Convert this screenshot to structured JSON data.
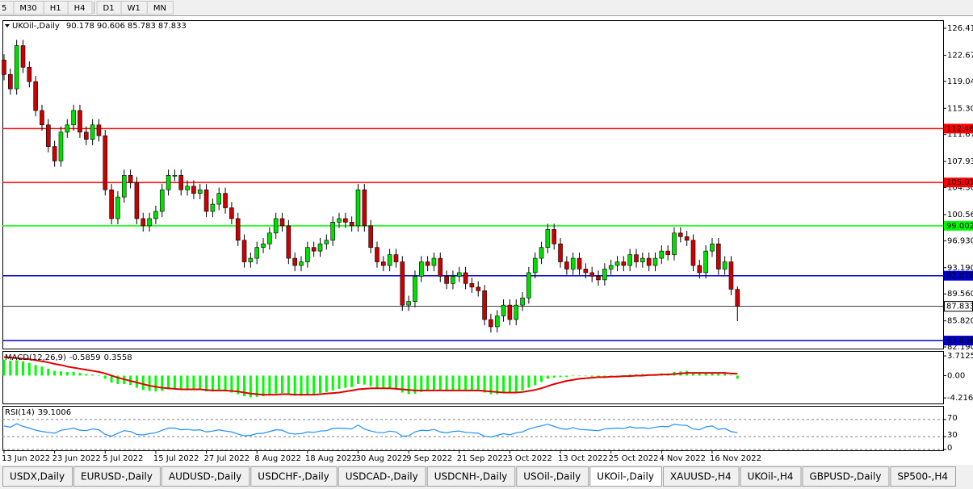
{
  "toolbar": {
    "timeframes": [
      "5",
      "M30",
      "H1",
      "H4",
      "D1",
      "W1",
      "MN"
    ]
  },
  "chart_data": [
    {
      "type": "candlestick",
      "title": "UKOil-,Daily",
      "categories": [
        "13 Jun 2022",
        null,
        null,
        null,
        null,
        null,
        null,
        null,
        "23 Jun 2022",
        null,
        null,
        null,
        null,
        null,
        null,
        null,
        "5 Jul 2022",
        null,
        null,
        null,
        null,
        null,
        null,
        null,
        "15 Jul 2022",
        null,
        null,
        null,
        null,
        null,
        null,
        null,
        "27 Jul 2022",
        null,
        null,
        null,
        null,
        null,
        null,
        null,
        "8 Aug 2022",
        null,
        null,
        null,
        null,
        null,
        null,
        null,
        "18 Aug 2022",
        null,
        null,
        null,
        null,
        null,
        null,
        null,
        "30 Aug 2022",
        null,
        null,
        null,
        null,
        null,
        null,
        null,
        "9 Sep 2022",
        null,
        null,
        null,
        null,
        null,
        null,
        null,
        "21 Sep 2022",
        null,
        null,
        null,
        null,
        null,
        null,
        null,
        "3 Oct 2022",
        null,
        null,
        null,
        null,
        null,
        null,
        null,
        "13 Oct 2022",
        null,
        null,
        null,
        null,
        null,
        null,
        null,
        "25 Oct 2022",
        null,
        null,
        null,
        null,
        null,
        null,
        null,
        "4 Nov 2022",
        null,
        null,
        null,
        null,
        null,
        null,
        null,
        "16 Nov 2022",
        null,
        null,
        null,
        null
      ],
      "open": [
        122,
        120,
        118,
        124,
        121,
        119,
        115,
        113,
        110,
        108,
        112,
        113,
        115,
        112,
        111,
        113,
        111.5,
        104,
        100,
        103,
        106,
        105,
        100,
        99,
        100,
        101,
        104,
        106,
        106,
        104,
        104.5,
        103.5,
        104,
        101,
        102,
        103.5,
        101.5,
        100,
        97,
        94,
        94.5,
        96,
        96.5,
        98,
        100,
        99,
        94.5,
        93.5,
        94,
        96,
        95.5,
        96.5,
        97,
        99.5,
        100,
        99.5,
        99,
        104,
        99,
        96,
        94,
        93.5,
        95,
        94,
        88,
        88.5,
        92,
        94,
        93.5,
        94.5,
        92,
        91,
        92,
        92.5,
        91,
        90.5,
        90,
        86,
        85,
        86.5,
        88,
        86,
        88,
        89,
        92.5,
        94.5,
        96,
        98.5,
        96.5,
        94,
        93,
        94.5,
        93,
        92.5,
        92,
        91.5,
        93,
        93.5,
        94,
        93.5,
        95,
        94,
        94.5,
        93.5,
        94.5,
        95.5,
        95,
        98,
        97.5,
        97,
        93.5,
        92.5,
        95.5,
        96.5,
        93,
        94,
        90.178
      ],
      "high": [
        122.8,
        120.8,
        124.8,
        124.8,
        121.8,
        119.8,
        115.8,
        113.8,
        110.8,
        112.8,
        113.8,
        115.8,
        115.8,
        112.8,
        113.8,
        113.8,
        112.3,
        104.8,
        103.8,
        106.8,
        106.8,
        105.8,
        100.8,
        100.8,
        101.8,
        104.8,
        106.8,
        106.8,
        106.8,
        105.3,
        105.3,
        104.8,
        104.8,
        102.8,
        104.3,
        104.3,
        102.3,
        100.8,
        97.8,
        95.3,
        96.8,
        97.3,
        98.8,
        100.8,
        100.8,
        99.8,
        95.3,
        94.8,
        96.8,
        96.8,
        97.3,
        97.8,
        100.3,
        100.8,
        100.8,
        100.3,
        104.8,
        104.8,
        99.8,
        96.8,
        94.8,
        95.8,
        95.8,
        94.8,
        89.3,
        92.8,
        94.8,
        94.8,
        95.3,
        95.3,
        92.8,
        92.8,
        93.3,
        93.3,
        91.8,
        91.3,
        90.8,
        86.8,
        87.3,
        88.8,
        88.8,
        88.8,
        89.8,
        93.3,
        95.3,
        96.8,
        99.3,
        99.3,
        97.3,
        94.8,
        95.3,
        95.3,
        93.8,
        93.3,
        92.8,
        93.8,
        94.3,
        94.8,
        94.8,
        95.8,
        95.8,
        95.3,
        95.3,
        95.3,
        96.3,
        96.3,
        98.8,
        98.8,
        98.3,
        97.8,
        94.3,
        96.3,
        97.3,
        97.3,
        94.8,
        94.8,
        90.606
      ],
      "low": [
        119.2,
        117.2,
        117.2,
        120.2,
        118.2,
        114.2,
        112.2,
        109.2,
        107.2,
        107.2,
        111.2,
        112.2,
        111.2,
        110.2,
        110.2,
        110.7,
        103.2,
        99.2,
        99.2,
        102.2,
        104.2,
        99.2,
        98.2,
        98.2,
        99.2,
        100.2,
        103.2,
        105.2,
        103.2,
        103.2,
        102.7,
        102.7,
        100.2,
        100.2,
        101.2,
        100.7,
        99.2,
        96.2,
        93.2,
        93.2,
        93.7,
        95.2,
        95.7,
        97.2,
        98.2,
        93.7,
        92.7,
        92.7,
        93.2,
        94.7,
        94.7,
        95.7,
        96.2,
        98.7,
        98.7,
        98.2,
        98.2,
        98.2,
        95.2,
        93.2,
        92.7,
        92.7,
        93.2,
        87.2,
        87.2,
        87.7,
        91.2,
        92.7,
        92.7,
        91.2,
        90.2,
        90.2,
        91.2,
        90.2,
        89.7,
        89.2,
        85.2,
        84.2,
        84.2,
        85.7,
        85.2,
        85.2,
        87.2,
        88.2,
        91.7,
        93.7,
        95.2,
        95.7,
        93.2,
        92.2,
        92.2,
        92.2,
        91.7,
        91.2,
        90.7,
        90.7,
        92.2,
        92.7,
        92.7,
        92.7,
        93.2,
        93.2,
        92.7,
        92.7,
        93.7,
        94.2,
        94.2,
        96.7,
        96.2,
        92.7,
        91.7,
        91.7,
        94.7,
        92.2,
        92.2,
        89.4,
        85.783
      ],
      "close": [
        120,
        118,
        124,
        121,
        119,
        115,
        113,
        110,
        108,
        112,
        113,
        115,
        112,
        111,
        113,
        111.5,
        104,
        100,
        103,
        106,
        105,
        100,
        99,
        100,
        101,
        104,
        106,
        106,
        104,
        104.5,
        103.5,
        104,
        101,
        102,
        103.5,
        101.5,
        100,
        97,
        94,
        94.5,
        96,
        96.5,
        98,
        100,
        99,
        94.5,
        93.5,
        94,
        96,
        95.5,
        96.5,
        97,
        99.5,
        100,
        99.5,
        99,
        104,
        99,
        96,
        94,
        93.5,
        95,
        94,
        88,
        88.5,
        92,
        94,
        93.5,
        94.5,
        92,
        91,
        92,
        92.5,
        91,
        90.5,
        90,
        86,
        85,
        86.5,
        88,
        86,
        88,
        89,
        92.5,
        94.5,
        96,
        98.5,
        96.5,
        94,
        93,
        94.5,
        93,
        92.5,
        92,
        91.5,
        93,
        93.5,
        94,
        93.5,
        95,
        94,
        94.5,
        93.5,
        94.5,
        95.5,
        95,
        98,
        97.5,
        97,
        93.5,
        92.5,
        95.5,
        96.5,
        93,
        94,
        90.2,
        87.833
      ],
      "up_color": "#00e000",
      "down_color": "#cc0000",
      "ylim": [
        81.97,
        127.53
      ],
      "yticks": [
        {
          "value": 126.41,
          "label": "126.410"
        },
        {
          "value": 122.67,
          "label": "122.670"
        },
        {
          "value": 119.04,
          "label": "119.040"
        },
        {
          "value": 115.3,
          "label": "115.300"
        },
        {
          "value": 111.67,
          "label": "111.670"
        },
        {
          "value": 107.93,
          "label": "107.930"
        },
        {
          "value": 104.3,
          "label": "104.300"
        },
        {
          "value": 100.56,
          "label": "100.560"
        },
        {
          "value": 96.93,
          "label": "96.930"
        },
        {
          "value": 93.19,
          "label": "93.190"
        },
        {
          "value": 89.56,
          "label": "89.560"
        },
        {
          "value": 85.82,
          "label": "85.820"
        },
        {
          "value": 82.19,
          "label": "82.190"
        }
      ],
      "levels": [
        {
          "value": 112.488,
          "color": "#ff0000"
        },
        {
          "value": 105.018,
          "color": "#ff0000"
        },
        {
          "value": 99.002,
          "color": "#00ff00"
        },
        {
          "value": 92.078,
          "color": "#0000cd"
        },
        {
          "value": 83.086,
          "color": "#0000cd"
        }
      ]
    },
    {
      "type": "macd",
      "title": "MACD(12,26,9)",
      "histogram": [
        3.0,
        2.8,
        2.9,
        2.7,
        2.4,
        2.0,
        1.7,
        1.3,
        0.9,
        0.8,
        0.7,
        0.7,
        0.5,
        0.3,
        0.2,
        0.1,
        -0.6,
        -1.3,
        -1.6,
        -1.6,
        -1.8,
        -2.3,
        -2.7,
        -2.9,
        -3.0,
        -2.9,
        -2.6,
        -2.5,
        -2.6,
        -2.6,
        -2.7,
        -2.7,
        -3.0,
        -3.0,
        -2.9,
        -3.0,
        -3.2,
        -3.5,
        -3.9,
        -4.1,
        -4.0,
        -3.9,
        -3.7,
        -3.4,
        -3.3,
        -3.6,
        -3.8,
        -3.8,
        -3.6,
        -3.5,
        -3.3,
        -3.1,
        -2.8,
        -2.5,
        -2.3,
        -2.2,
        -1.6,
        -1.7,
        -2.0,
        -2.3,
        -2.5,
        -2.5,
        -2.6,
        -3.2,
        -3.5,
        -3.4,
        -3.1,
        -2.9,
        -2.7,
        -2.7,
        -2.8,
        -2.8,
        -2.7,
        -2.8,
        -2.8,
        -2.9,
        -3.2,
        -3.5,
        -3.5,
        -3.3,
        -3.3,
        -3.1,
        -2.8,
        -2.3,
        -1.8,
        -1.2,
        -0.6,
        -0.4,
        -0.3,
        -0.3,
        -0.1,
        -0.1,
        -0.1,
        -0.2,
        -0.3,
        -0.2,
        -0.1,
        0.0,
        0.0,
        0.2,
        0.2,
        0.3,
        0.2,
        0.3,
        0.4,
        0.4,
        0.7,
        0.8,
        0.9,
        0.6,
        0.4,
        0.5,
        0.6,
        0.4,
        0.4,
        0.0,
        -0.5859
      ],
      "signal": [
        3.5,
        3.4,
        3.3,
        3.2,
        3.1,
        2.9,
        2.7,
        2.5,
        2.2,
        2.0,
        1.7,
        1.5,
        1.3,
        1.1,
        0.9,
        0.7,
        0.4,
        0.0,
        -0.4,
        -0.7,
        -1.0,
        -1.3,
        -1.6,
        -1.9,
        -2.1,
        -2.3,
        -2.4,
        -2.5,
        -2.6,
        -2.6,
        -2.6,
        -2.6,
        -2.7,
        -2.8,
        -2.8,
        -2.8,
        -2.9,
        -3.0,
        -3.2,
        -3.4,
        -3.5,
        -3.6,
        -3.6,
        -3.6,
        -3.5,
        -3.5,
        -3.6,
        -3.6,
        -3.6,
        -3.6,
        -3.5,
        -3.4,
        -3.3,
        -3.2,
        -3.0,
        -2.8,
        -2.6,
        -2.5,
        -2.4,
        -2.4,
        -2.4,
        -2.4,
        -2.5,
        -2.6,
        -2.7,
        -2.8,
        -2.8,
        -2.8,
        -2.8,
        -2.8,
        -2.8,
        -2.8,
        -2.8,
        -2.8,
        -2.8,
        -2.8,
        -2.9,
        -3.0,
        -3.1,
        -3.2,
        -3.2,
        -3.2,
        -3.1,
        -2.9,
        -2.7,
        -2.4,
        -2.0,
        -1.6,
        -1.3,
        -1.0,
        -0.8,
        -0.6,
        -0.5,
        -0.4,
        -0.3,
        -0.3,
        -0.2,
        -0.2,
        -0.1,
        -0.1,
        0.0,
        0.0,
        0.1,
        0.1,
        0.2,
        0.2,
        0.3,
        0.4,
        0.5,
        0.5,
        0.5,
        0.5,
        0.5,
        0.5,
        0.5,
        0.4,
        0.3558
      ],
      "histogram_color": "#00ff00",
      "signal_color": "#e00000",
      "ylim": [
        -5.26,
        4.64
      ],
      "yticks": [
        3.7125,
        {
          "value": 0,
          "label": "0.00"
        },
        -4.2165
      ]
    },
    {
      "type": "line",
      "title": "RSI(14)",
      "values": [
        55,
        52,
        60,
        54,
        50,
        45,
        42,
        40,
        38,
        45,
        47,
        50,
        45,
        44,
        48,
        46,
        35,
        31,
        38,
        44,
        42,
        35,
        34,
        37,
        39,
        45,
        50,
        50,
        46,
        47,
        45,
        46,
        41,
        43,
        46,
        43,
        41,
        36,
        32,
        33,
        37,
        38,
        42,
        46,
        45,
        38,
        36,
        37,
        41,
        40,
        43,
        44,
        49,
        50,
        49,
        48,
        57,
        48,
        43,
        40,
        39,
        43,
        41,
        31,
        32,
        41,
        45,
        44,
        47,
        41,
        39,
        42,
        43,
        40,
        39,
        38,
        31,
        29,
        33,
        37,
        34,
        39,
        41,
        48,
        52,
        55,
        59,
        54,
        49,
        47,
        51,
        47,
        46,
        45,
        44,
        48,
        49,
        50,
        49,
        53,
        50,
        51,
        49,
        52,
        54,
        53,
        59,
        57,
        56,
        48,
        46,
        53,
        55,
        47,
        49,
        42,
        39.1006
      ],
      "color": "#1e90ff",
      "ylim": [
        0,
        100
      ],
      "yticks": [
        70,
        30,
        0
      ],
      "grid": "dashed"
    }
  ],
  "tabs": {
    "items": [
      "USDX,Daily",
      "EURUSD-,Daily",
      "AUDUSD-,Daily",
      "USDCHF-,Daily",
      "USDCAD-,Daily",
      "USDCNH-,Daily",
      "USOil-,Daily",
      "UKOil-,Daily",
      "XAUUSD-,H4",
      "UKOil-,H4",
      "GBPUSD-,Daily",
      "SP500-,H4"
    ],
    "active": 7
  }
}
